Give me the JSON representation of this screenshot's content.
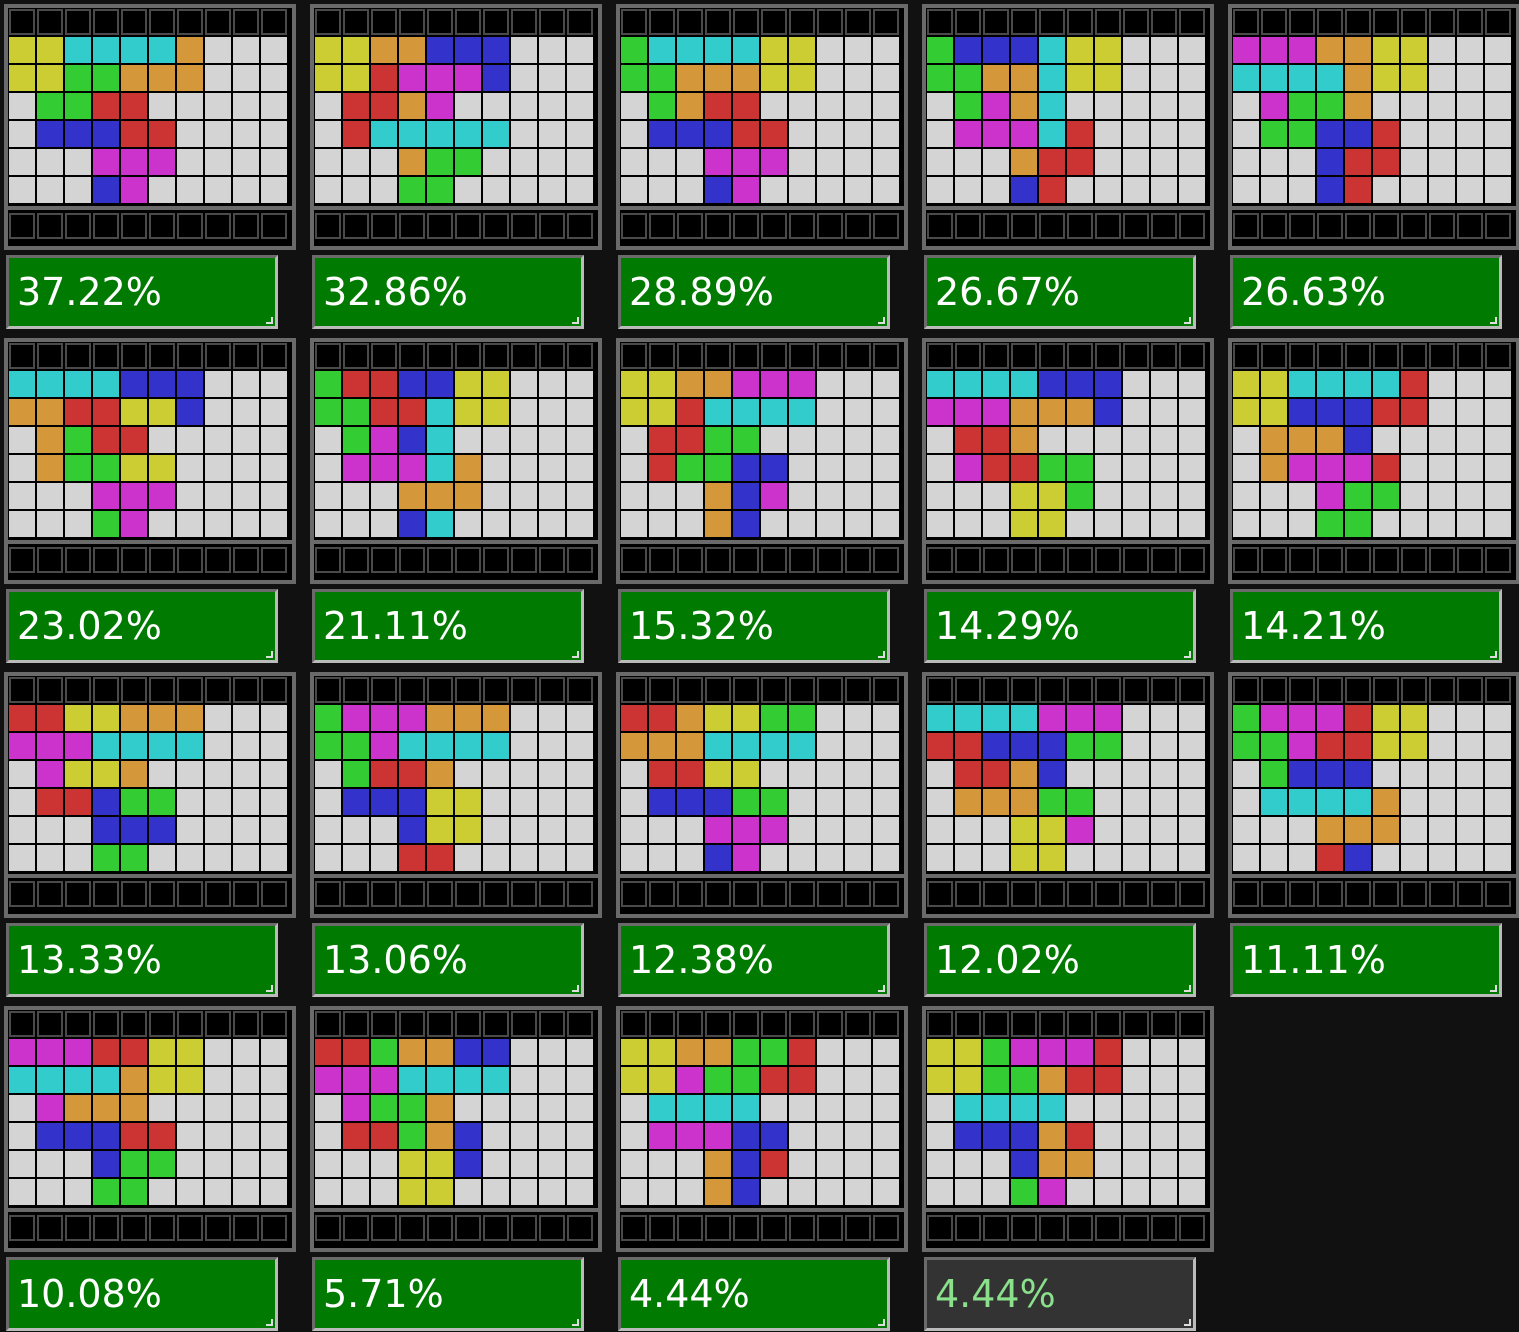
{
  "colors": {
    "Y": "#cccc33",
    "C": "#33cccc",
    "O": "#d4983a",
    "B": "#3333cc",
    "G": "#33cc33",
    "M": "#cc33cc",
    "R": "#cc3333",
    "empty": "#d4d4d4"
  },
  "options": [
    {
      "label": "37.22%",
      "active": true,
      "grid": [
        "YYCCCCO...",
        "YYGGOOO...",
        ".GGRR....",
        ".BBBRR...",
        "...MMM...",
        "...BM...."
      ]
    },
    {
      "label": "32.86%",
      "active": true,
      "grid": [
        "YYOOBBB...",
        "YYRMMMB...",
        ".RROM....",
        ".RCCCCC...",
        "...OGG...",
        "...GG...."
      ]
    },
    {
      "label": "28.89%",
      "active": true,
      "grid": [
        "GCCCCYY...",
        "GGOOOYY...",
        ".GORR....",
        ".BBBRR...",
        "...MMM...",
        "...BM...."
      ]
    },
    {
      "label": "26.67%",
      "active": true,
      "grid": [
        "GBBBCYY...",
        "GGOOCYY...",
        ".GMOC....",
        ".MMMCR...",
        "...ORR...",
        "...BR...."
      ]
    },
    {
      "label": "26.63%",
      "active": true,
      "grid": [
        "MMMOOYY...",
        "CCCCOYY...",
        ".MGGO....",
        ".GGBBR...",
        "...BRR...",
        "...BR...."
      ]
    },
    {
      "label": "23.02%",
      "active": true,
      "grid": [
        "CCCCBBB...",
        "OORRYYB...",
        ".OGRR....",
        ".OGGYY...",
        "...MMM...",
        "...GM...."
      ]
    },
    {
      "label": "21.11%",
      "active": true,
      "grid": [
        "GRRBBYY...",
        "GGRRCYY...",
        ".GMBC....",
        ".MMMCO...",
        "...OOO...",
        "...BC...."
      ]
    },
    {
      "label": "15.32%",
      "active": true,
      "grid": [
        "YYOOMMM...",
        "YYRCCCC...",
        ".RRGG....",
        ".RGGBB...",
        "...OBM...",
        "...OB...."
      ]
    },
    {
      "label": "14.29%",
      "active": true,
      "grid": [
        "CCCCBBB...",
        "MMMOOOB...",
        ".RRO.....",
        ".MRRGG...",
        "...YYG...",
        "...YY...."
      ]
    },
    {
      "label": "14.21%",
      "active": true,
      "grid": [
        "YYCCCCR...",
        "YYBBBRR...",
        ".OOOB....",
        ".OMMMR...",
        "...MGG...",
        "...GG...."
      ]
    },
    {
      "label": "13.33%",
      "active": true,
      "grid": [
        "RRYYOOO...",
        "MMMCCCC...",
        ".MYYO....",
        ".RRBGG...",
        "...BBB...",
        "...GG...."
      ]
    },
    {
      "label": "13.06%",
      "active": true,
      "grid": [
        "GMMMOOO...",
        "GGMCCCC...",
        ".GRRO....",
        ".BBBYY...",
        "...BYY...",
        "...RR...."
      ]
    },
    {
      "label": "12.38%",
      "active": true,
      "grid": [
        "RROYYGG...",
        "OOOCCCC...",
        ".RRYY....",
        ".BBBGG...",
        "...MMM...",
        "...BM...."
      ]
    },
    {
      "label": "12.02%",
      "active": true,
      "grid": [
        "CCCCMMM...",
        "RRBBBGG...",
        ".RROB....",
        ".OOOGG...",
        "...YYM...",
        "...YY...."
      ]
    },
    {
      "label": "11.11%",
      "active": true,
      "grid": [
        "GMMMRYY...",
        "GGMRRYY...",
        ".GBBB....",
        ".CCCCO...",
        "...OOO...",
        "...RB...."
      ]
    },
    {
      "label": "10.08%",
      "active": true,
      "grid": [
        "MMMRRYY...",
        "CCCCOYY...",
        ".MOOO....",
        ".BBBRR...",
        "...BGG...",
        "...GG...."
      ]
    },
    {
      "label": "5.71%",
      "active": true,
      "grid": [
        "RRGOOBB...",
        "MMMCCCC...",
        ".MGGO....",
        ".RRGOB...",
        "...YYB...",
        "...YY...."
      ]
    },
    {
      "label": "4.44%",
      "active": true,
      "grid": [
        "YYOOGGR...",
        "YYMGGRR...",
        ".CCCC....",
        ".MMMBB...",
        "...OBR...",
        "...OB...."
      ]
    },
    {
      "label": "4.44%",
      "active": false,
      "grid": [
        "YYGMMMR...",
        "YYGGORR...",
        ".CCCC....",
        ".BBBOR...",
        "...BOO...",
        "...GM...."
      ]
    }
  ]
}
